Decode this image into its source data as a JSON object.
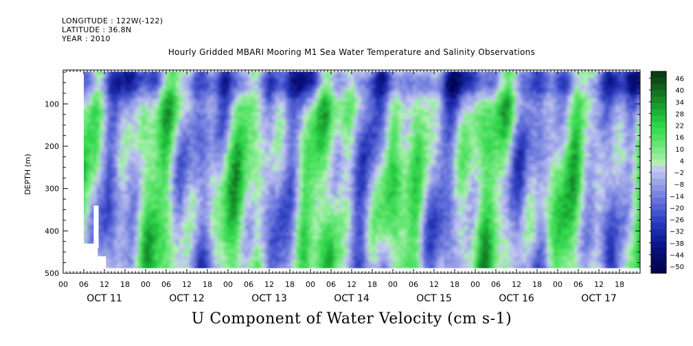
{
  "header": {
    "longitude": "LONGITUDE : 122W(-122)",
    "latitude": "LATITUDE : 36.8N",
    "year": "YEAR : 2010"
  },
  "title": "Hourly Gridded MBARI Mooring M1 Sea Water Temperature and Salinity Observations",
  "bottom_label": "U Component of Water Velocity (cm s-1)",
  "chart_data": {
    "type": "heatmap",
    "title": "Hourly Gridded MBARI Mooring M1 Sea Water Temperature and Salinity Observations",
    "xlabel": "",
    "ylabel": "DEPTH (m)",
    "colorbar_label": "U Component of Water Velocity (cm s-1)",
    "y_axis": {
      "inverted": true,
      "range": [
        20,
        500
      ],
      "ticks": [
        100,
        200,
        300,
        400,
        500
      ]
    },
    "x_axis": {
      "hour_ticks": [
        "00",
        "06",
        "12",
        "18"
      ],
      "day_labels": [
        "OCT 11",
        "OCT 12",
        "OCT 13",
        "OCT 14",
        "OCT 15",
        "OCT 16",
        "OCT 17"
      ],
      "range_days": [
        0,
        7
      ]
    },
    "data_extent": {
      "start_day": 0.25,
      "end_day": 7,
      "depth_min": 24,
      "depth_max": 488
    },
    "colorbar": {
      "labels": [
        46,
        40,
        34,
        28,
        22,
        16,
        10,
        4,
        -2,
        -8,
        -14,
        -20,
        -26,
        -32,
        -38,
        -44,
        -50
      ],
      "colors": [
        "#0a3d14",
        "#0d4d18",
        "#10611e",
        "#137524",
        "#17892b",
        "#1a9d31",
        "#1eb038",
        "#22c23e",
        "#2ed34a",
        "#3ddc55",
        "#4fe262",
        "#66e574",
        "#7de988",
        "#95ec9d",
        "#b1efb4",
        "#c3c9ef",
        "#b1b8ec",
        "#9ea6e8",
        "#8b95e4",
        "#7884df",
        "#6673da",
        "#5462d4",
        "#4252cc",
        "#3242c2",
        "#2535b6",
        "#1a2aa8",
        "#121f98",
        "#0c1788",
        "#081178",
        "#050c68",
        "#03085a",
        "#02054e"
      ]
    },
    "grid": false,
    "legend_placement": "right"
  }
}
